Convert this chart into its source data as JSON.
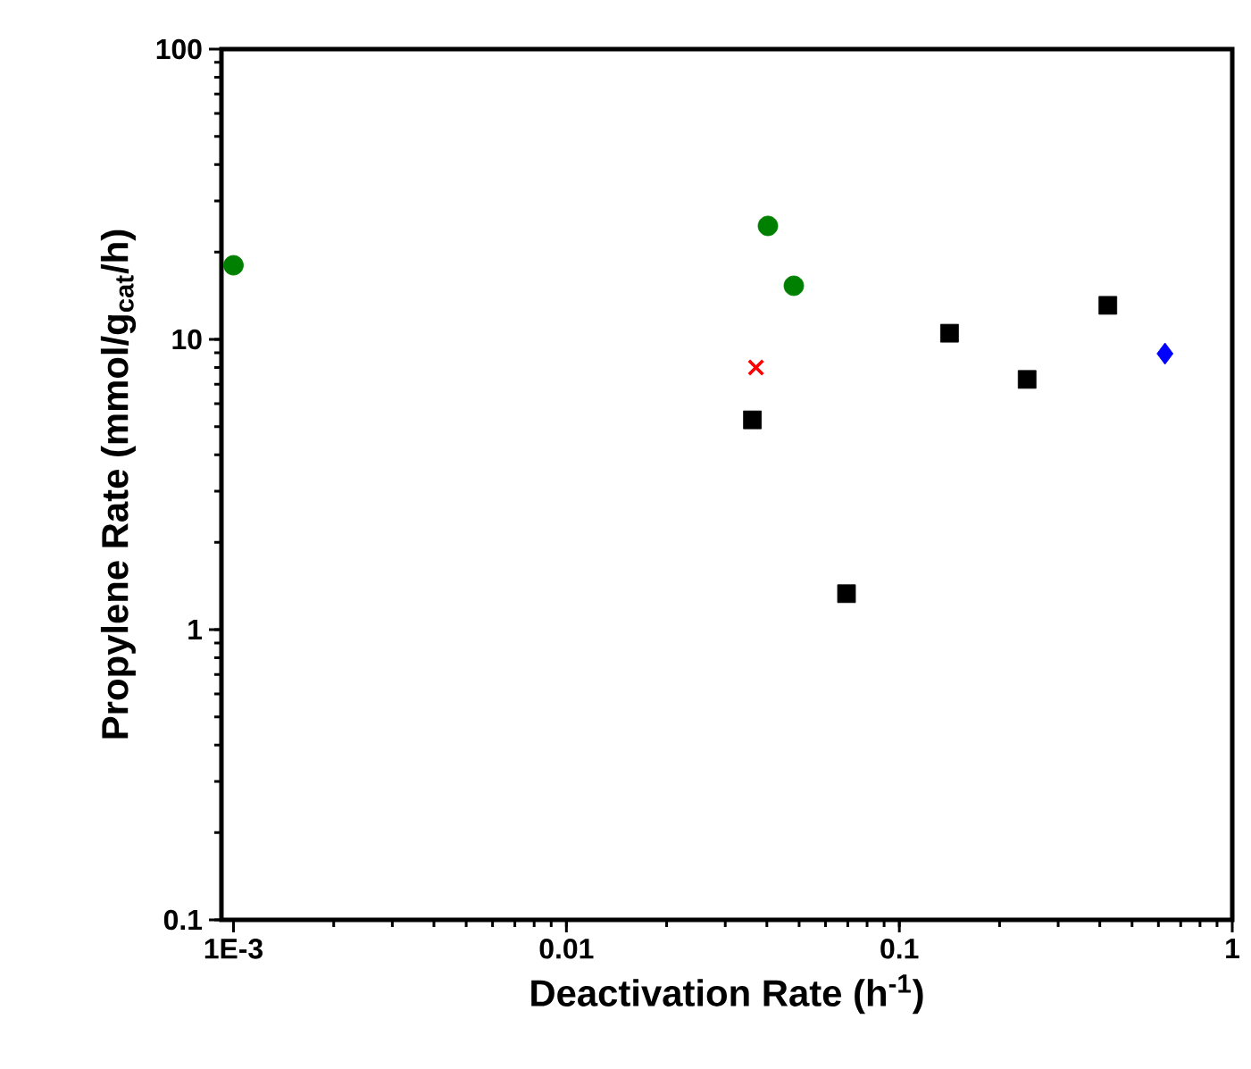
{
  "chart_data": {
    "type": "scatter",
    "xlabel": "Deactivation Rate (h$^{-1}$)",
    "ylabel": "Propylene Rate (mmol/g$_{cat}$/h)",
    "log": "xy",
    "xlim": [
      0.00092,
      1
    ],
    "ylim": [
      0.1,
      100
    ],
    "xticks": [
      {
        "value": 0.001,
        "label": "1E-3"
      },
      0.01,
      0.1,
      1
    ],
    "yticks": [
      0.1,
      1,
      10,
      100
    ],
    "series": [
      {
        "color": "#008000",
        "marker": "circle",
        "x": [
          0.001,
          0.0403,
          0.0482
        ],
        "values": [
          18,
          24.6,
          15.3
        ]
      },
      {
        "color": "#ff0000",
        "marker": "cross",
        "x": [
          0.0371
        ],
        "values": [
          8
        ]
      },
      {
        "color": "#000000",
        "marker": "square",
        "x": [
          0.0362,
          0.0694,
          0.1415,
          0.242,
          0.423
        ],
        "values": [
          5.28,
          1.33,
          10.5,
          7.28,
          13.1
        ]
      },
      {
        "color": "#0000ff",
        "marker": "diamond",
        "x": [
          0.628
        ],
        "values": [
          8.93
        ]
      }
    ]
  }
}
